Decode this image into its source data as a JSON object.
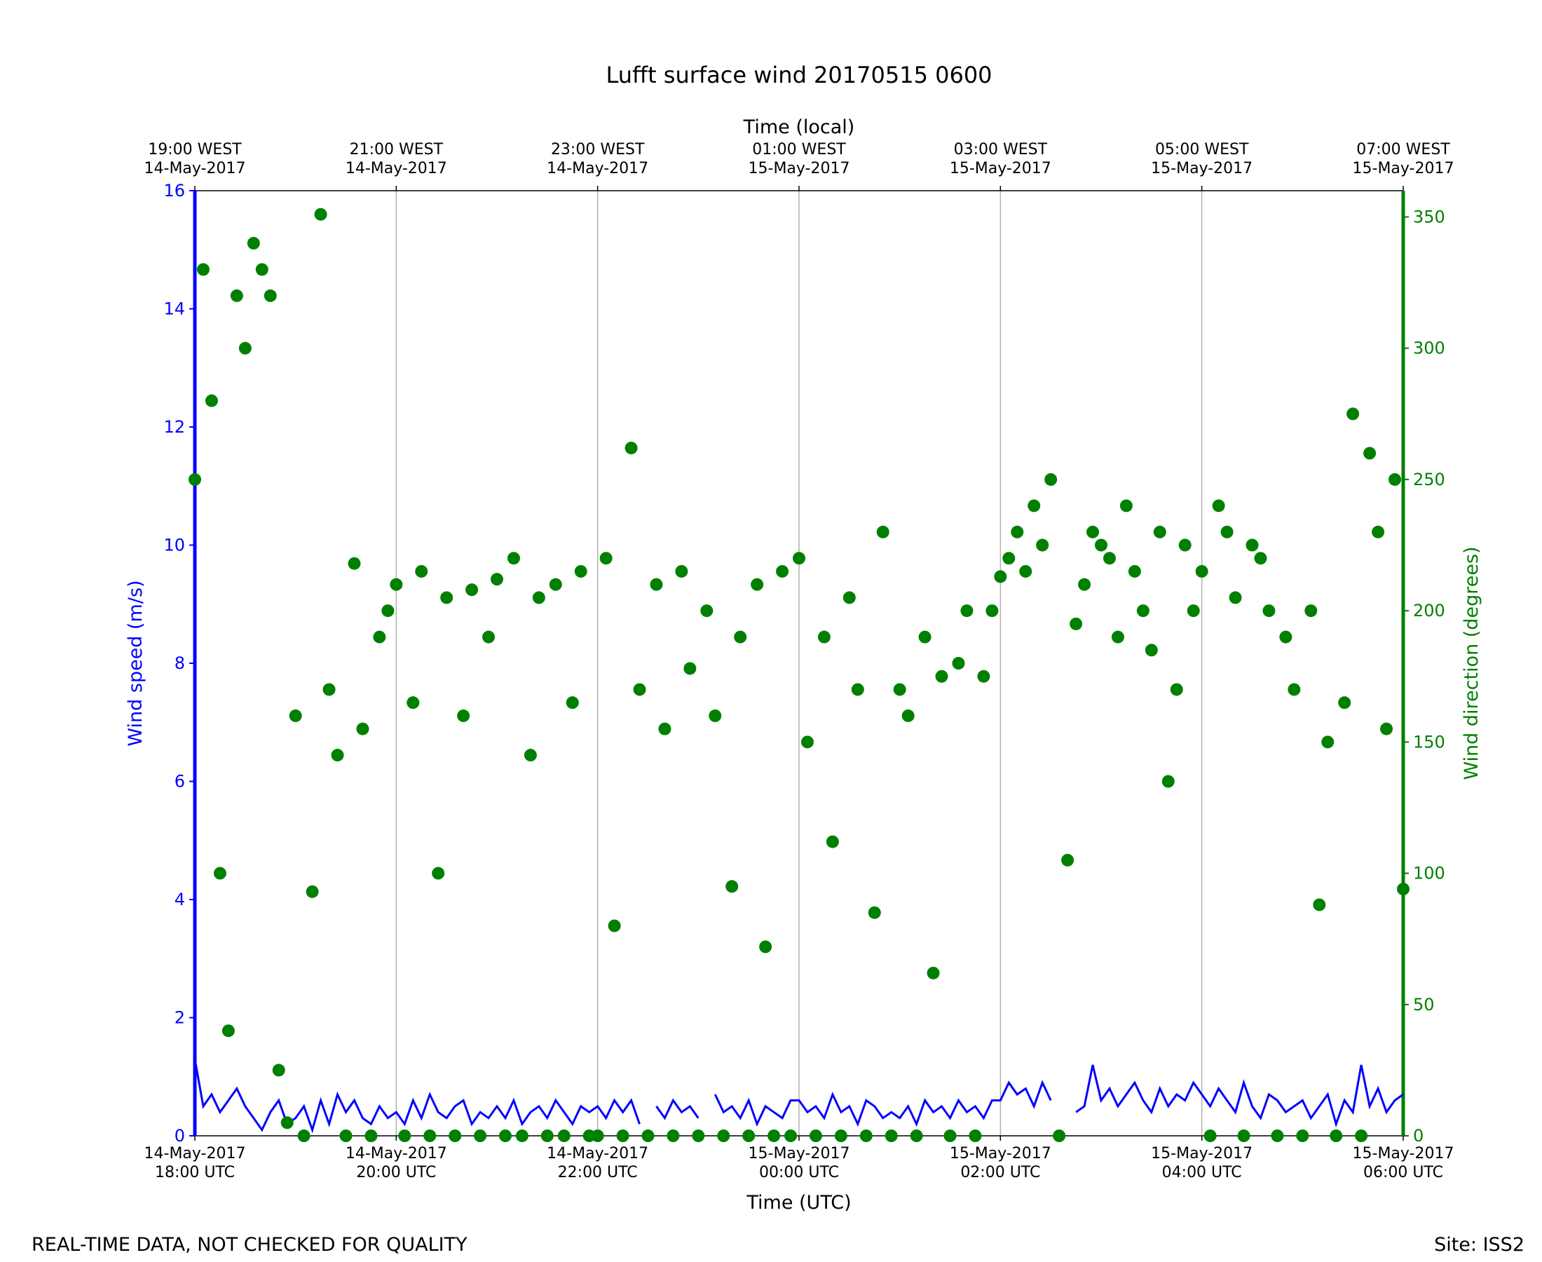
{
  "chart_data": {
    "type": "line",
    "title": "Lufft surface wind 20170515 0600",
    "xlabel": "Time (UTC)",
    "x2label": "Time (local)",
    "ylabel": "Wind speed (m/s)",
    "y2label": "Wind direction (degrees)",
    "footer_left": "REAL-TIME DATA, NOT CHECKED FOR QUALITY",
    "footer_right": "Site: ISS2",
    "xlim": [
      "2017-05-14 18:00",
      "2017-05-15 06:00"
    ],
    "xticks": [
      {
        "value": "2017-05-14 18:00",
        "label": "14-May-2017\n18:00 UTC"
      },
      {
        "value": "2017-05-14 20:00",
        "label": "14-May-2017\n20:00 UTC"
      },
      {
        "value": "2017-05-14 22:00",
        "label": "14-May-2017\n22:00 UTC"
      },
      {
        "value": "2017-05-15 00:00",
        "label": "15-May-2017\n00:00 UTC"
      },
      {
        "value": "2017-05-15 02:00",
        "label": "15-May-2017\n02:00 UTC"
      },
      {
        "value": "2017-05-15 04:00",
        "label": "15-May-2017\n04:00 UTC"
      },
      {
        "value": "2017-05-15 06:00",
        "label": "15-May-2017\n06:00 UTC"
      }
    ],
    "x2ticks": [
      {
        "value": "2017-05-14 18:00",
        "label": "19:00 WEST\n14-May-2017"
      },
      {
        "value": "2017-05-14 20:00",
        "label": "21:00 WEST\n14-May-2017"
      },
      {
        "value": "2017-05-14 22:00",
        "label": "23:00 WEST\n14-May-2017"
      },
      {
        "value": "2017-05-15 00:00",
        "label": "01:00 WEST\n15-May-2017"
      },
      {
        "value": "2017-05-15 02:00",
        "label": "03:00 WEST\n15-May-2017"
      },
      {
        "value": "2017-05-15 04:00",
        "label": "05:00 WEST\n15-May-2017"
      },
      {
        "value": "2017-05-15 06:00",
        "label": "07:00 WEST\n15-May-2017"
      }
    ],
    "ylim": [
      0,
      16
    ],
    "yticks": [
      0,
      2,
      4,
      6,
      8,
      10,
      12,
      14,
      16
    ],
    "y2lim": [
      0,
      360
    ],
    "y2ticks": [
      0,
      50,
      100,
      150,
      200,
      250,
      300,
      350
    ],
    "grid": true,
    "x": [
      "2017-05-14 18:00",
      "2017-05-14 18:05",
      "2017-05-14 18:10",
      "2017-05-14 18:15",
      "2017-05-14 18:20",
      "2017-05-14 18:25",
      "2017-05-14 18:30",
      "2017-05-14 18:35",
      "2017-05-14 18:40",
      "2017-05-14 18:45",
      "2017-05-14 18:50",
      "2017-05-14 18:55",
      "2017-05-14 19:00",
      "2017-05-14 19:05",
      "2017-05-14 19:10",
      "2017-05-14 19:15",
      "2017-05-14 19:20",
      "2017-05-14 19:25",
      "2017-05-14 19:30",
      "2017-05-14 19:35",
      "2017-05-14 19:40",
      "2017-05-14 19:45",
      "2017-05-14 19:50",
      "2017-05-14 19:55",
      "2017-05-14 20:00",
      "2017-05-14 20:05",
      "2017-05-14 20:10",
      "2017-05-14 20:15",
      "2017-05-14 20:20",
      "2017-05-14 20:25",
      "2017-05-14 20:30",
      "2017-05-14 20:35",
      "2017-05-14 20:40",
      "2017-05-14 20:45",
      "2017-05-14 20:50",
      "2017-05-14 20:55",
      "2017-05-14 21:00",
      "2017-05-14 21:05",
      "2017-05-14 21:10",
      "2017-05-14 21:15",
      "2017-05-14 21:20",
      "2017-05-14 21:25",
      "2017-05-14 21:30",
      "2017-05-14 21:35",
      "2017-05-14 21:40",
      "2017-05-14 21:45",
      "2017-05-14 21:50",
      "2017-05-14 21:55",
      "2017-05-14 22:00",
      "2017-05-14 22:05",
      "2017-05-14 22:10",
      "2017-05-14 22:15",
      "2017-05-14 22:20",
      "2017-05-14 22:25",
      "2017-05-14 22:30",
      "2017-05-14 22:35",
      "2017-05-14 22:40",
      "2017-05-14 22:45",
      "2017-05-14 22:50",
      "2017-05-14 22:55",
      "2017-05-14 23:00",
      "2017-05-14 23:05",
      "2017-05-14 23:10",
      "2017-05-14 23:15",
      "2017-05-14 23:20",
      "2017-05-14 23:25",
      "2017-05-14 23:30",
      "2017-05-14 23:35",
      "2017-05-14 23:40",
      "2017-05-14 23:45",
      "2017-05-14 23:50",
      "2017-05-14 23:55",
      "2017-05-15 00:00",
      "2017-05-15 00:05",
      "2017-05-15 00:10",
      "2017-05-15 00:15",
      "2017-05-15 00:20",
      "2017-05-15 00:25",
      "2017-05-15 00:30",
      "2017-05-15 00:35",
      "2017-05-15 00:40",
      "2017-05-15 00:45",
      "2017-05-15 00:50",
      "2017-05-15 00:55",
      "2017-05-15 01:00",
      "2017-05-15 01:05",
      "2017-05-15 01:10",
      "2017-05-15 01:15",
      "2017-05-15 01:20",
      "2017-05-15 01:25",
      "2017-05-15 01:30",
      "2017-05-15 01:35",
      "2017-05-15 01:40",
      "2017-05-15 01:45",
      "2017-05-15 01:50",
      "2017-05-15 01:55",
      "2017-05-15 02:00",
      "2017-05-15 02:05",
      "2017-05-15 02:10",
      "2017-05-15 02:15",
      "2017-05-15 02:20",
      "2017-05-15 02:25",
      "2017-05-15 02:30",
      "2017-05-15 02:35",
      "2017-05-15 02:40",
      "2017-05-15 02:45",
      "2017-05-15 02:50",
      "2017-05-15 02:55",
      "2017-05-15 03:00",
      "2017-05-15 03:05",
      "2017-05-15 03:10",
      "2017-05-15 03:15",
      "2017-05-15 03:20",
      "2017-05-15 03:25",
      "2017-05-15 03:30",
      "2017-05-15 03:35",
      "2017-05-15 03:40",
      "2017-05-15 03:45",
      "2017-05-15 03:50",
      "2017-05-15 03:55",
      "2017-05-15 04:00",
      "2017-05-15 04:05",
      "2017-05-15 04:10",
      "2017-05-15 04:15",
      "2017-05-15 04:20",
      "2017-05-15 04:25",
      "2017-05-15 04:30",
      "2017-05-15 04:35",
      "2017-05-15 04:40",
      "2017-05-15 04:45",
      "2017-05-15 04:50",
      "2017-05-15 04:55",
      "2017-05-15 05:00",
      "2017-05-15 05:05",
      "2017-05-15 05:10",
      "2017-05-15 05:15",
      "2017-05-15 05:20",
      "2017-05-15 05:25",
      "2017-05-15 05:30",
      "2017-05-15 05:35",
      "2017-05-15 05:40",
      "2017-05-15 05:45",
      "2017-05-15 05:50",
      "2017-05-15 05:55",
      "2017-05-15 06:00"
    ],
    "series": [
      {
        "type": "line",
        "color": "#0000ff",
        "axis": "y",
        "values": [
          1.3,
          0.5,
          0.7,
          0.4,
          0.6,
          0.8,
          0.5,
          0.3,
          0.1,
          0.4,
          0.6,
          0.2,
          0.3,
          0.5,
          0.1,
          0.6,
          0.2,
          0.7,
          0.4,
          0.6,
          0.3,
          0.2,
          0.5,
          0.3,
          0.4,
          0.2,
          0.6,
          0.3,
          0.7,
          0.4,
          0.3,
          0.5,
          0.6,
          0.2,
          0.4,
          0.3,
          0.5,
          0.3,
          0.6,
          0.2,
          0.4,
          0.5,
          0.3,
          0.6,
          0.4,
          0.2,
          0.5,
          0.4,
          0.5,
          0.3,
          0.6,
          0.4,
          0.6,
          0.2,
          null,
          0.5,
          0.3,
          0.6,
          0.4,
          0.5,
          0.3,
          null,
          0.7,
          0.4,
          0.5,
          0.3,
          0.6,
          0.2,
          0.5,
          0.4,
          0.3,
          0.6,
          0.6,
          0.4,
          0.5,
          0.3,
          0.7,
          0.4,
          0.5,
          0.2,
          0.6,
          0.5,
          0.3,
          0.4,
          0.3,
          0.5,
          0.2,
          0.6,
          0.4,
          0.5,
          0.3,
          0.6,
          0.4,
          0.5,
          0.3,
          0.6,
          0.6,
          0.9,
          0.7,
          0.8,
          0.5,
          0.9,
          0.6,
          null,
          null,
          0.4,
          0.5,
          1.2,
          0.6,
          0.8,
          0.5,
          0.7,
          0.9,
          0.6,
          0.4,
          0.8,
          0.5,
          0.7,
          0.6,
          0.9,
          0.7,
          0.5,
          0.8,
          0.6,
          0.4,
          0.9,
          0.5,
          0.3,
          0.7,
          0.6,
          0.4,
          0.5,
          0.6,
          0.3,
          0.5,
          0.7,
          0.2,
          0.6,
          0.4,
          1.2,
          0.5,
          0.8,
          0.4,
          0.6,
          0.7
        ]
      },
      {
        "type": "scatter",
        "color": "#008000",
        "axis": "y2",
        "values": [
          250,
          330,
          280,
          100,
          40,
          320,
          300,
          340,
          330,
          320,
          25,
          5,
          160,
          0,
          93,
          351,
          170,
          145,
          0,
          218,
          155,
          0,
          190,
          200,
          210,
          0,
          165,
          215,
          0,
          100,
          205,
          0,
          160,
          208,
          0,
          190,
          212,
          0,
          220,
          0,
          145,
          205,
          0,
          210,
          0,
          165,
          215,
          0,
          0,
          220,
          80,
          0,
          262,
          170,
          0,
          210,
          155,
          0,
          215,
          178,
          0,
          200,
          160,
          0,
          95,
          190,
          0,
          210,
          72,
          0,
          215,
          0,
          220,
          150,
          0,
          190,
          112,
          0,
          205,
          170,
          0,
          85,
          230,
          0,
          170,
          160,
          0,
          190,
          62,
          175,
          0,
          180,
          200,
          0,
          175,
          200,
          213,
          220,
          230,
          215,
          240,
          225,
          250,
          0,
          105,
          195,
          210,
          230,
          225,
          220,
          190,
          240,
          215,
          200,
          185,
          230,
          135,
          170,
          225,
          200,
          215,
          0,
          240,
          230,
          205,
          0,
          225,
          220,
          200,
          0,
          190,
          170,
          0,
          200,
          88,
          150,
          0,
          165,
          275,
          0,
          260,
          230,
          155,
          250,
          94
        ]
      }
    ]
  }
}
